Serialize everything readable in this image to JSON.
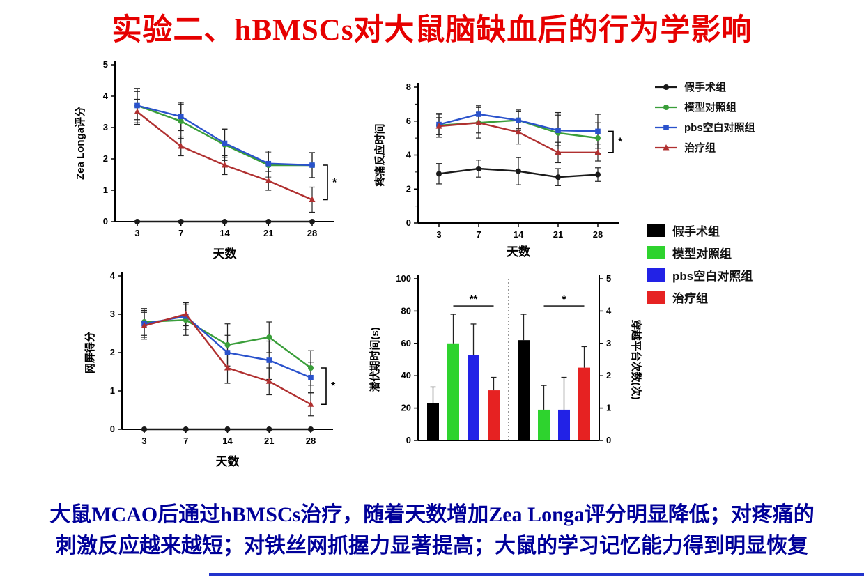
{
  "slide": {
    "title": "实验二、hBMSCs对大鼠脑缺血后的行为学影响",
    "title_color": "#e60000",
    "caption_line1": "大鼠MCAO后通过hBMSCs治疗，随着天数增加Zea Longa评分明显降低；对疼痛的",
    "caption_line2": "刺激反应越来越短；对铁丝网抓握力显著提高；大鼠的学习记忆能力得到明显恢复",
    "caption_color": "#000099"
  },
  "line_legend": {
    "items": [
      {
        "label": "假手术组",
        "color": "#1a1a1a",
        "marker": "circle"
      },
      {
        "label": "模型对照组",
        "color": "#3a9e3a",
        "marker": "circle"
      },
      {
        "label": "pbs空白对照组",
        "color": "#2a52cc",
        "marker": "square"
      },
      {
        "label": "治疗组",
        "color": "#b03030",
        "marker": "triangle"
      }
    ]
  },
  "bar_legend": {
    "items": [
      {
        "label": "假手术组",
        "color": "#000000"
      },
      {
        "label": "模型对照组",
        "color": "#2ed32e"
      },
      {
        "label": "pbs空白对照组",
        "color": "#2222e6"
      },
      {
        "label": "治疗组",
        "color": "#e62222"
      }
    ]
  },
  "chart_data": [
    {
      "id": "zea-longa",
      "type": "line",
      "xlabel": "天数",
      "ylabel": "Zea Longa评分",
      "x": [
        3,
        7,
        14,
        21,
        28
      ],
      "ylim": [
        0,
        5
      ],
      "yticks": [
        0,
        1,
        2,
        3,
        4,
        5
      ],
      "sig": "*",
      "series": [
        {
          "name": "假手术组",
          "color": "#1a1a1a",
          "marker": "circle",
          "values": [
            0,
            0,
            0,
            0,
            0
          ],
          "err": [
            0,
            0,
            0,
            0,
            0
          ]
        },
        {
          "name": "模型对照组",
          "color": "#3a9e3a",
          "marker": "circle",
          "values": [
            3.7,
            3.2,
            2.45,
            1.8,
            1.8
          ],
          "err": [
            0.55,
            0.55,
            0.5,
            0.4,
            0.4
          ]
        },
        {
          "name": "pbs空白对照组",
          "color": "#2a52cc",
          "marker": "square",
          "values": [
            3.7,
            3.35,
            2.5,
            1.85,
            1.8
          ],
          "err": [
            0.45,
            0.45,
            0.45,
            0.4,
            0.4
          ]
        },
        {
          "name": "治疗组",
          "color": "#b03030",
          "marker": "triangle",
          "values": [
            3.5,
            2.4,
            1.8,
            1.3,
            0.7
          ],
          "err": [
            0.4,
            0.3,
            0.3,
            0.3,
            0.4
          ]
        }
      ]
    },
    {
      "id": "pain-response",
      "type": "line",
      "xlabel": "天数",
      "ylabel": "疼痛反应时间",
      "x": [
        3,
        7,
        14,
        21,
        28
      ],
      "ylim": [
        0,
        8
      ],
      "yticks": [
        0,
        2,
        4,
        6,
        8
      ],
      "yminor": [
        1,
        3,
        5,
        7
      ],
      "sig": "*",
      "series": [
        {
          "name": "假手术组",
          "color": "#1a1a1a",
          "marker": "circle",
          "values": [
            2.9,
            3.2,
            3.05,
            2.7,
            2.85
          ],
          "err": [
            0.6,
            0.5,
            0.8,
            0.5,
            0.4
          ]
        },
        {
          "name": "模型对照组",
          "color": "#3a9e3a",
          "marker": "circle",
          "values": [
            5.75,
            5.9,
            6.05,
            5.3,
            5.0
          ],
          "err": [
            0.7,
            0.9,
            0.5,
            1.2,
            0.9
          ]
        },
        {
          "name": "pbs空白对照组",
          "color": "#2a52cc",
          "marker": "square",
          "values": [
            5.8,
            6.4,
            6.05,
            5.45,
            5.4
          ],
          "err": [
            0.6,
            0.5,
            0.6,
            0.9,
            1.0
          ]
        },
        {
          "name": "治疗组",
          "color": "#b03030",
          "marker": "triangle",
          "values": [
            5.7,
            5.9,
            5.35,
            4.15,
            4.15
          ],
          "err": [
            0.5,
            0.6,
            0.7,
            0.6,
            0.5
          ]
        }
      ]
    },
    {
      "id": "mesh-score",
      "type": "line",
      "xlabel": "天数",
      "ylabel": "网屏得分",
      "x": [
        3,
        7,
        14,
        21,
        28
      ],
      "ylim": [
        0,
        4
      ],
      "yticks": [
        0,
        1,
        2,
        3,
        4
      ],
      "sig": "*",
      "series": [
        {
          "name": "假手术组",
          "color": "#1a1a1a",
          "marker": "circle",
          "values": [
            0,
            0,
            0,
            0,
            0
          ],
          "err": [
            0,
            0,
            0,
            0,
            0
          ]
        },
        {
          "name": "模型对照组",
          "color": "#3a9e3a",
          "marker": "circle",
          "values": [
            2.8,
            2.85,
            2.2,
            2.4,
            1.6
          ],
          "err": [
            0.35,
            0.4,
            0.55,
            0.4,
            0.45
          ]
        },
        {
          "name": "pbs空白对照组",
          "color": "#2a52cc",
          "marker": "square",
          "values": [
            2.75,
            2.95,
            2.0,
            1.8,
            1.35
          ],
          "err": [
            0.35,
            0.35,
            0.45,
            0.5,
            0.4
          ]
        },
        {
          "name": "治疗组",
          "color": "#b03030",
          "marker": "triangle",
          "values": [
            2.7,
            3.0,
            1.6,
            1.25,
            0.65
          ],
          "err": [
            0.35,
            0.3,
            0.4,
            0.35,
            0.3
          ]
        }
      ]
    },
    {
      "id": "water-maze",
      "type": "bar",
      "left_ylabel": "潜伏期时间(s)",
      "right_ylabel": "穿越平台次数(次)",
      "left_ylim": [
        0,
        100
      ],
      "left_yticks": [
        0,
        20,
        40,
        60,
        80,
        100
      ],
      "right_ylim": [
        0,
        5
      ],
      "right_yticks": [
        0,
        1,
        2,
        3,
        4,
        5
      ],
      "groups": [
        {
          "axis": "left",
          "sig": "**",
          "bars": [
            {
              "name": "假手术组",
              "color": "#000000",
              "value": 23,
              "err": 10
            },
            {
              "name": "模型对照组",
              "color": "#2ed32e",
              "value": 60,
              "err": 18
            },
            {
              "name": "pbs空白对照组",
              "color": "#2222e6",
              "value": 53,
              "err": 19
            },
            {
              "name": "治疗组",
              "color": "#e62222",
              "value": 31,
              "err": 8
            }
          ]
        },
        {
          "axis": "right",
          "sig": "*",
          "bars": [
            {
              "name": "假手术组",
              "color": "#000000",
              "value": 3.1,
              "err": 0.8
            },
            {
              "name": "模型对照组",
              "color": "#2ed32e",
              "value": 0.95,
              "err": 0.75
            },
            {
              "name": "pbs空白对照组",
              "color": "#2222e6",
              "value": 0.95,
              "err": 1.0
            },
            {
              "name": "治疗组",
              "color": "#e62222",
              "value": 2.25,
              "err": 0.65
            }
          ]
        }
      ]
    }
  ]
}
